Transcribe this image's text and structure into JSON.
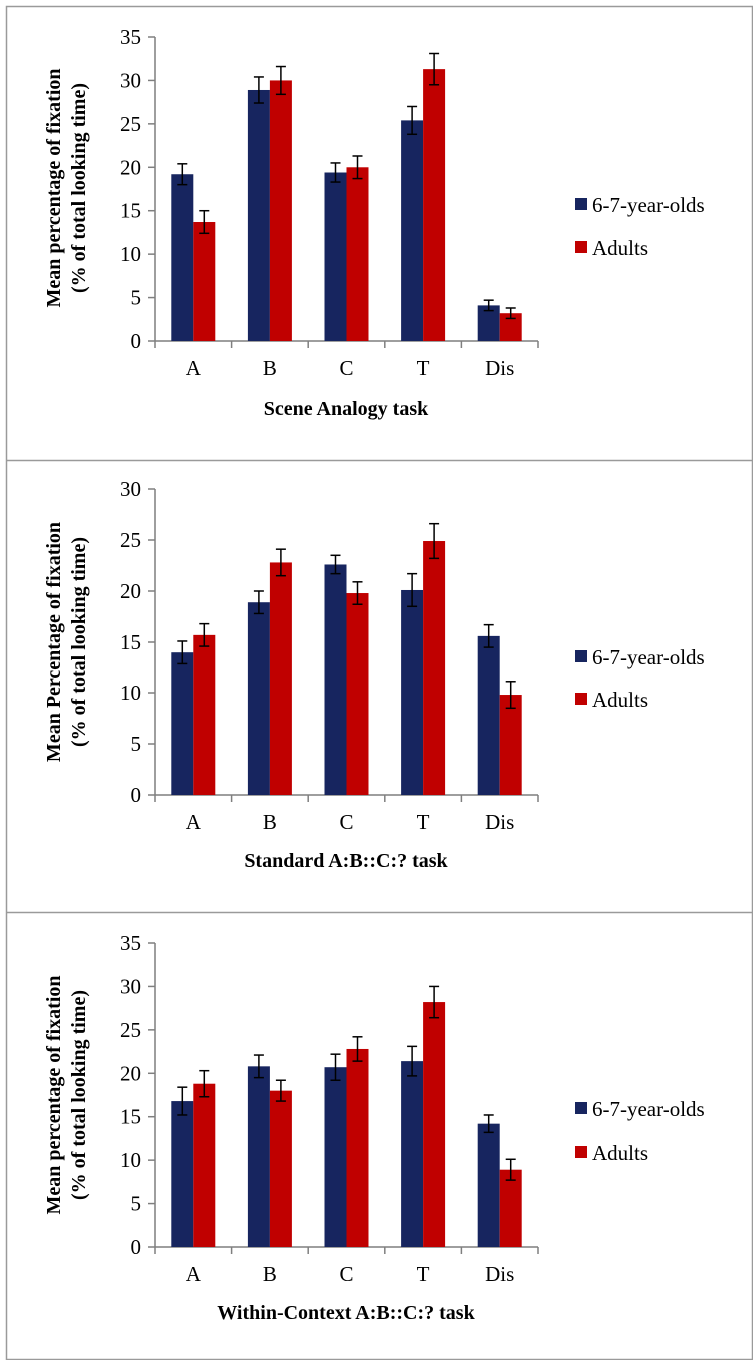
{
  "colors": {
    "children": "#17255f",
    "adults": "#c00000",
    "axis": "#7f7f7f",
    "panel_border": "#9a9a9a",
    "error_bar": "#000000"
  },
  "chart_data": [
    {
      "type": "bar",
      "xlabel": "Scene Analogy task",
      "ylabel_line1": "Mean percentage of fixation",
      "ylabel_line2": "(% of total looking time)",
      "categories": [
        "A",
        "B",
        "C",
        "T",
        "Dis"
      ],
      "ylim": [
        0,
        35
      ],
      "yticks": [
        "0",
        "5",
        "10",
        "15",
        "20",
        "25",
        "30",
        "35"
      ],
      "legend_position": "right",
      "series": [
        {
          "name": "6-7-year-olds",
          "color": "#17255f",
          "values": [
            19.2,
            28.9,
            19.4,
            25.4,
            4.1
          ],
          "errors": [
            1.2,
            1.5,
            1.1,
            1.6,
            0.6
          ]
        },
        {
          "name": "Adults",
          "color": "#c00000",
          "values": [
            13.7,
            30.0,
            20.0,
            31.3,
            3.2
          ],
          "errors": [
            1.3,
            1.6,
            1.3,
            1.8,
            0.6
          ]
        }
      ]
    },
    {
      "type": "bar",
      "xlabel": "Standard A:B::C:? task",
      "ylabel_line1": "Mean Percentage of fixation",
      "ylabel_line2": "(% of total looking time)",
      "categories": [
        "A",
        "B",
        "C",
        "T",
        "Dis"
      ],
      "ylim": [
        0,
        30
      ],
      "yticks": [
        "0",
        "5",
        "10",
        "15",
        "20",
        "25",
        "30"
      ],
      "legend_position": "right",
      "series": [
        {
          "name": "6-7-year-olds",
          "color": "#17255f",
          "values": [
            14.0,
            18.9,
            22.6,
            20.1,
            15.6
          ],
          "errors": [
            1.1,
            1.1,
            0.9,
            1.6,
            1.1
          ]
        },
        {
          "name": "Adults",
          "color": "#c00000",
          "values": [
            15.7,
            22.8,
            19.8,
            24.9,
            9.8
          ],
          "errors": [
            1.1,
            1.3,
            1.1,
            1.7,
            1.3
          ]
        }
      ]
    },
    {
      "type": "bar",
      "xlabel": "Within-Context A:B::C:? task",
      "ylabel_line1": "Mean percentage of fixation",
      "ylabel_line2": "(% of total looking time)",
      "categories": [
        "A",
        "B",
        "C",
        "T",
        "Dis"
      ],
      "ylim": [
        0,
        35
      ],
      "yticks": [
        "0",
        "5",
        "10",
        "15",
        "20",
        "25",
        "30",
        "35"
      ],
      "legend_position": "right",
      "series": [
        {
          "name": "6-7-year-olds",
          "color": "#17255f",
          "values": [
            16.8,
            20.8,
            20.7,
            21.4,
            14.2
          ],
          "errors": [
            1.6,
            1.3,
            1.5,
            1.7,
            1.0
          ]
        },
        {
          "name": "Adults",
          "color": "#c00000",
          "values": [
            18.8,
            18.0,
            22.8,
            28.2,
            8.9
          ],
          "errors": [
            1.5,
            1.2,
            1.4,
            1.8,
            1.2
          ]
        }
      ]
    }
  ]
}
